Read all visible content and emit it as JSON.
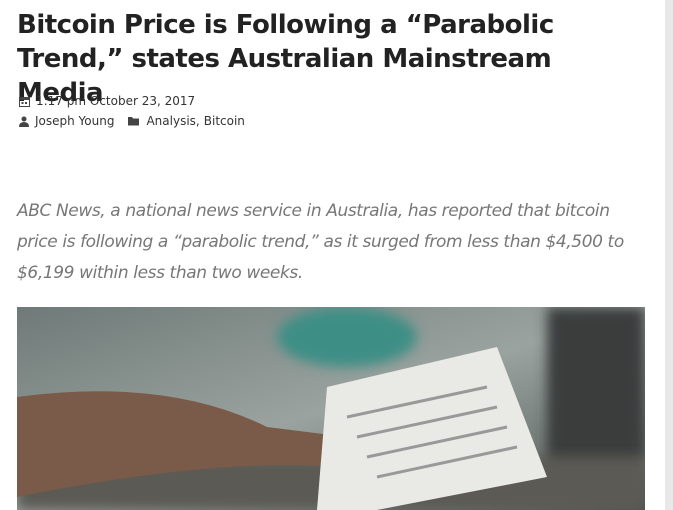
{
  "article": {
    "title": "Bitcoin Price is Following a “Parabolic Trend,” states Australian Mainstream Media",
    "meta": {
      "date": "1:17 pm October 23, 2017",
      "author": "Joseph Young",
      "categories": [
        "Analysis",
        "Bitcoin"
      ],
      "separator": ","
    },
    "lead": "ABC News, a national news service in Australia, has reported that bitcoin price is following a “parabolic trend,” as it surged from less than $4,500 to $6,199 within less than two weeks."
  }
}
